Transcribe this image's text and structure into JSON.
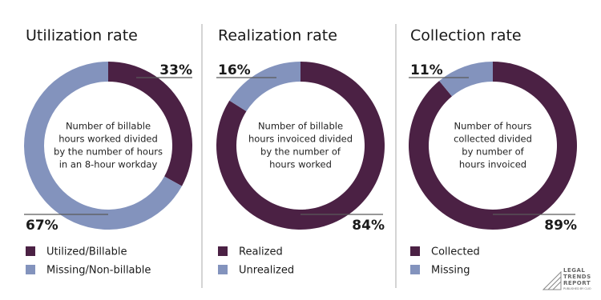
{
  "chart_data": [
    {
      "type": "pie",
      "donut": true,
      "title": "Utilization rate",
      "center_text": [
        "Number of billable",
        "hours worked divided",
        "by the number of hours",
        "in an 8-hour workday"
      ],
      "categories": [
        "Utilized/Billable",
        "Missing/Non-billable"
      ],
      "values": [
        33,
        67
      ],
      "value_labels": [
        "33%",
        "67%"
      ],
      "colors": [
        "#4b2144",
        "#8393bd"
      ]
    },
    {
      "type": "pie",
      "donut": true,
      "title": "Realization rate",
      "center_text": [
        "Number of billable",
        "hours invoiced divided",
        "by the number of",
        "hours worked"
      ],
      "categories": [
        "Realized",
        "Unrealized"
      ],
      "values": [
        84,
        16
      ],
      "value_labels": [
        "84%",
        "16%"
      ],
      "colors": [
        "#4b2144",
        "#8393bd"
      ]
    },
    {
      "type": "pie",
      "donut": true,
      "title": "Collection rate",
      "center_text": [
        "Number of hours",
        "collected divided",
        "by number of",
        "hours invoiced"
      ],
      "categories": [
        "Collected",
        "Missing"
      ],
      "values": [
        89,
        11
      ],
      "value_labels": [
        "89%",
        "11%"
      ],
      "colors": [
        "#4b2144",
        "#8393bd"
      ]
    }
  ],
  "logo": {
    "lines": [
      "LEGAL",
      "TRENDS",
      "REPORT"
    ],
    "byline": "PUBLISHED BY CLIO"
  }
}
